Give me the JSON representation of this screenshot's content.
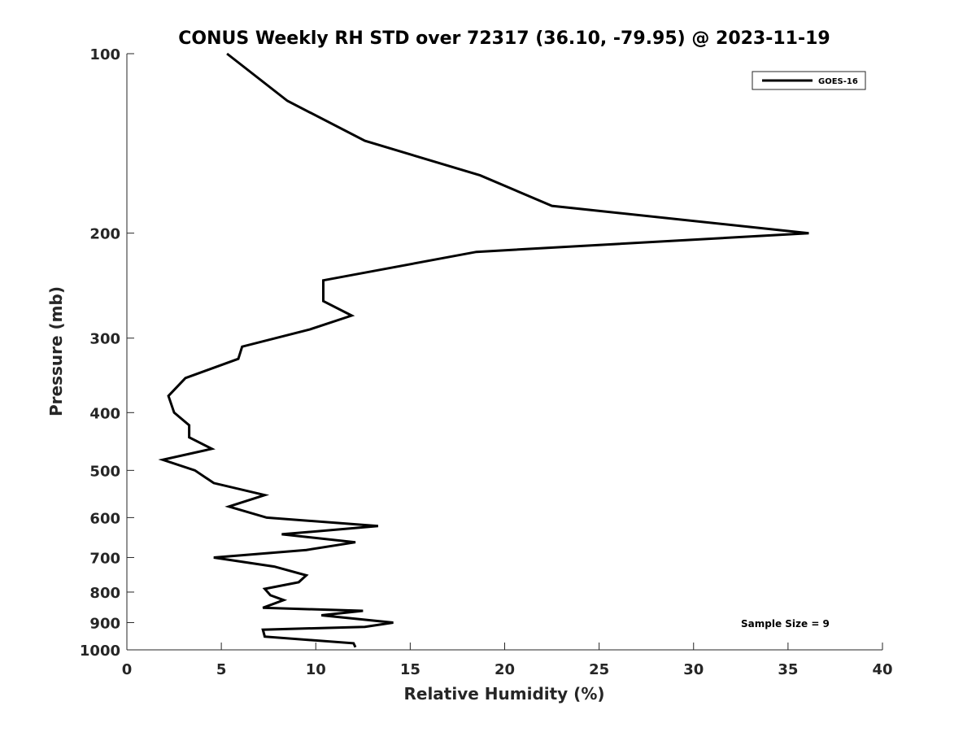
{
  "chart_data": {
    "type": "line",
    "title": "CONUS Weekly RH STD over 72317 (36.10, -79.95) @ 2023-11-19",
    "xlabel": "Relative Humidity (%)",
    "ylabel": "Pressure (mb)",
    "xlim": [
      0,
      40
    ],
    "ylim": [
      100,
      1000
    ],
    "y_scale": "log",
    "y_reversed": true,
    "x_ticks": [
      "0",
      "5",
      "10",
      "15",
      "20",
      "25",
      "30",
      "35",
      "40"
    ],
    "y_ticks": [
      "100",
      "200",
      "300",
      "400",
      "500",
      "600",
      "700",
      "800",
      "900",
      "1000"
    ],
    "grid": false,
    "legend_position": "top-right",
    "series": [
      {
        "name": "GOES-16",
        "color": "#000000",
        "points": [
          [
            5.3,
            100
          ],
          [
            8.5,
            120
          ],
          [
            12.6,
            140
          ],
          [
            18.7,
            160
          ],
          [
            22.5,
            180
          ],
          [
            36.1,
            200
          ],
          [
            18.5,
            215
          ],
          [
            10.4,
            240
          ],
          [
            10.4,
            260
          ],
          [
            11.9,
            275
          ],
          [
            9.7,
            290
          ],
          [
            6.1,
            310
          ],
          [
            5.9,
            325
          ],
          [
            3.1,
            350
          ],
          [
            2.2,
            375
          ],
          [
            2.5,
            400
          ],
          [
            3.3,
            420
          ],
          [
            3.3,
            440
          ],
          [
            4.5,
            460
          ],
          [
            1.9,
            480
          ],
          [
            3.6,
            500
          ],
          [
            4.6,
            525
          ],
          [
            7.3,
            550
          ],
          [
            5.4,
            575
          ],
          [
            7.4,
            600
          ],
          [
            13.3,
            620
          ],
          [
            8.2,
            640
          ],
          [
            12.1,
            660
          ],
          [
            9.5,
            680
          ],
          [
            4.6,
            700
          ],
          [
            7.8,
            725
          ],
          [
            9.5,
            750
          ],
          [
            9.1,
            770
          ],
          [
            7.3,
            790
          ],
          [
            7.6,
            810
          ],
          [
            8.3,
            825
          ],
          [
            7.2,
            850
          ],
          [
            12.5,
            860
          ],
          [
            10.3,
            875
          ],
          [
            14.1,
            900
          ],
          [
            12.6,
            915
          ],
          [
            7.2,
            925
          ],
          [
            7.3,
            950
          ],
          [
            12.0,
            975
          ],
          [
            12.1,
            990
          ]
        ]
      }
    ],
    "annotations": [
      "Sample Size = 9"
    ]
  }
}
